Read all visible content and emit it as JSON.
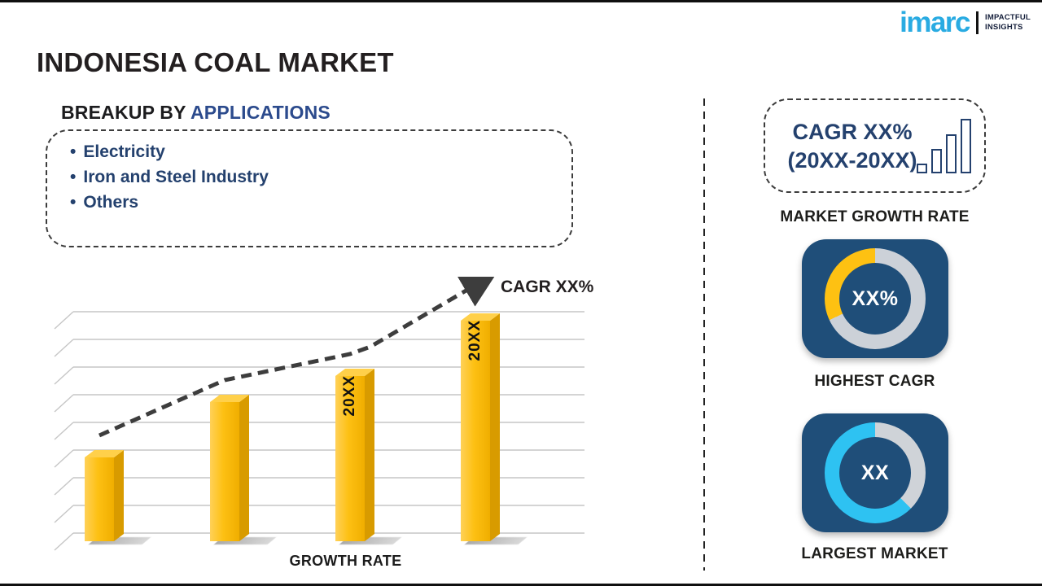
{
  "brand": {
    "logo_text": "imarc",
    "tagline_line1": "IMPACTFUL",
    "tagline_line2": "INSIGHTS",
    "logo_color": "#29abe2"
  },
  "title": "INDONESIA COAL MARKET",
  "breakup": {
    "heading_prefix": "BREAKUP BY",
    "heading_highlight": "APPLICATIONS",
    "bullet": "•",
    "items": [
      "Electricity",
      "Iron and Steel Industry",
      "Others"
    ]
  },
  "chart_data": {
    "type": "bar",
    "xlabel": "GROWTH RATE",
    "annotation": "CAGR XX%",
    "categories": [
      "",
      "",
      "20XX",
      "20XX"
    ],
    "values": [
      38,
      63,
      75,
      100
    ],
    "bar_color": "#FDC013",
    "trendline": "dashed-arrow-up",
    "gridlines": 9,
    "axis_style": "3d-perspective",
    "legend": "none"
  },
  "right_panel": {
    "growth_box": {
      "line1": "CAGR XX%",
      "line2": "(20XX-20XX)",
      "label": "MARKET GROWTH RATE",
      "icon_bar_heights": [
        12,
        30,
        48,
        67
      ]
    },
    "highest_cagr": {
      "value": "XX%",
      "label": "HIGHEST CAGR",
      "ring_segments": [
        {
          "color": "#ccd1d8",
          "from": 0,
          "to": 245
        },
        {
          "color": "#fec112",
          "from": 245,
          "to": 360
        }
      ]
    },
    "largest_market": {
      "value": "XX",
      "label": "LARGEST MARKET",
      "ring_segments": [
        {
          "color": "#cfd3d8",
          "from": 0,
          "to": 135
        },
        {
          "color": "#2ec2f2",
          "from": 135,
          "to": 360
        }
      ]
    },
    "card_color": "#1f4e79"
  }
}
